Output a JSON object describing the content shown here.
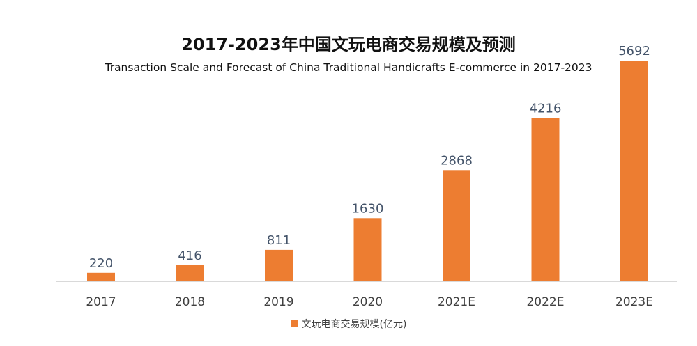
{
  "chart_data": {
    "type": "bar",
    "title": "2017-2023年中国文玩电商交易规模及预测",
    "subtitle": "Transaction Scale and Forecast of China Traditional Handicrafts E-commerce in 2017-2023",
    "categories": [
      "2017",
      "2018",
      "2019",
      "2020",
      "2021E",
      "2022E",
      "2023E"
    ],
    "series": [
      {
        "name": "文玩电商交易规模(亿元)",
        "values": [
          220,
          416,
          811,
          1630,
          2868,
          4216,
          5692
        ],
        "color": "#ed7d31"
      }
    ],
    "ylim": [
      0,
      6000
    ],
    "grid": false,
    "legend": "bottom-center",
    "data_labels": true,
    "label_color": "#44546a",
    "axis_color": "#d9d9d9"
  }
}
